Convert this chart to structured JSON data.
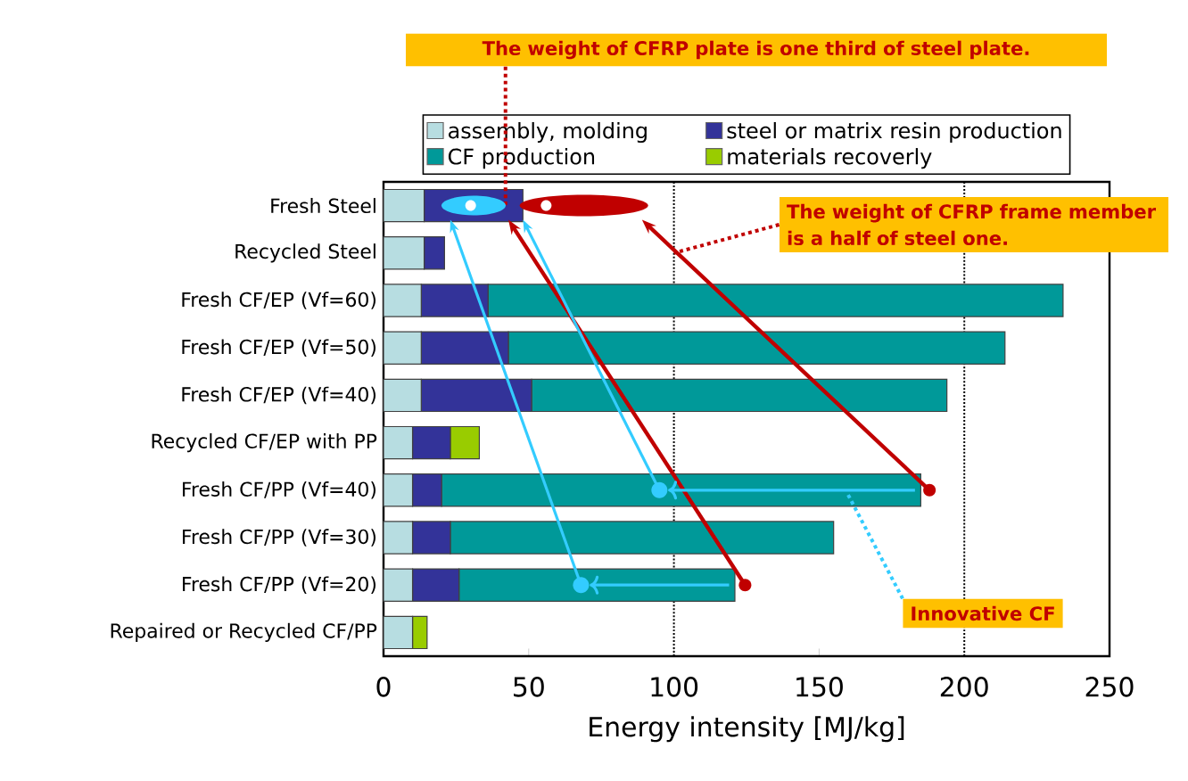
{
  "chart_data": {
    "type": "bar",
    "orientation": "horizontal",
    "stacked": true,
    "xlabel": "Energy intensity [MJ/kg]",
    "categories": [
      "Fresh Steel",
      "Recycled Steel",
      "Fresh CF/EP (Vf=60)",
      "Fresh CF/EP (Vf=50)",
      "Fresh CF/EP (Vf=40)",
      "Recycled CF/EP with PP",
      "Fresh CF/PP (Vf=40)",
      "Fresh CF/PP (Vf=30)",
      "Fresh CF/PP (Vf=20)",
      "Repaired or Recycled CF/PP"
    ],
    "series": [
      {
        "name": "assembly, molding",
        "color": "#b7dde1",
        "values": [
          14,
          14,
          13,
          13,
          13,
          10,
          10,
          10,
          10,
          10
        ]
      },
      {
        "name": "steel or matrix resin production",
        "color": "#333399",
        "values": [
          34,
          7,
          23,
          30,
          38,
          13,
          10,
          13,
          16,
          0
        ]
      },
      {
        "name": "CF production",
        "color": "#009999",
        "values": [
          0,
          0,
          198,
          171,
          143,
          0,
          165,
          132,
          95,
          0
        ]
      },
      {
        "name": "materials recoverly",
        "color": "#99cc00",
        "values": [
          0,
          0,
          0,
          0,
          0,
          10,
          0,
          0,
          0,
          5
        ]
      }
    ],
    "xlim": [
      0,
      250
    ],
    "xticks": [
      0,
      50,
      100,
      150,
      200,
      250
    ],
    "ref_lines": [
      {
        "axis": "x",
        "value": 100,
        "color": "#000000",
        "line_style": "dotted"
      },
      {
        "axis": "x",
        "value": 200,
        "color": "#000000",
        "line_style": "dotted"
      }
    ],
    "legend": "top",
    "annotations": [
      "The weight of CFRP plate is one third of steel plate.",
      {
        "text": "The weight of CFRP frame member is a half of steel one.",
        "x": 100,
        "y": "Recycled Steel"
      },
      "Innovative CF"
    ]
  }
}
